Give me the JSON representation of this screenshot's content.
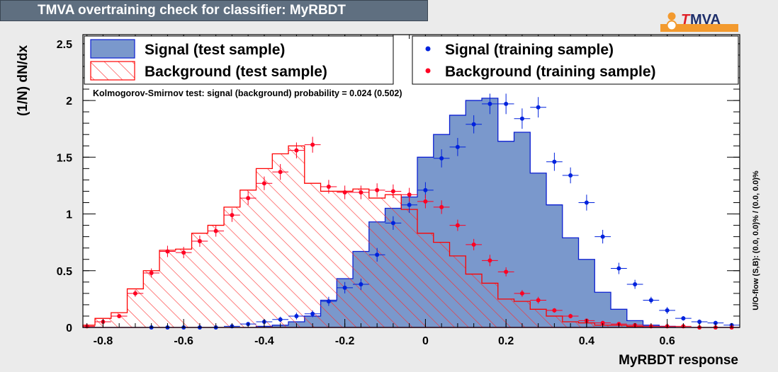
{
  "title": "TMVA overtraining check for classifier: MyRBDT",
  "logo": {
    "text_t": "T",
    "text_mva": "MVA"
  },
  "colors": {
    "signal_fill": "#7a98cc",
    "signal_line": "#0b1fd2",
    "background_line": "#ff0000",
    "signal_points": "#0022dd",
    "background_points": "#ff0022"
  },
  "chart_data": {
    "type": "histogram",
    "xlabel": "MyRBDT response",
    "ylabel": "(1/N) dN/dx",
    "xlim": [
      -0.85,
      0.78
    ],
    "ylim": [
      0,
      2.58
    ],
    "x_ticks": [
      "-0.8",
      "-0.6",
      "-0.4",
      "-0.2",
      "0",
      "0.2",
      "0.4",
      "0.6"
    ],
    "y_ticks": [
      "0",
      "0.5",
      "1",
      "1.5",
      "2",
      "2.5"
    ],
    "bin_edges": [
      -0.86,
      -0.82,
      -0.78,
      -0.74,
      -0.7,
      -0.66,
      -0.62,
      -0.58,
      -0.54,
      -0.5,
      -0.46,
      -0.42,
      -0.38,
      -0.34,
      -0.3,
      -0.26,
      -0.22,
      -0.18,
      -0.14,
      -0.1,
      -0.06,
      -0.02,
      0.02,
      0.06,
      0.1,
      0.14,
      0.18,
      0.22,
      0.26,
      0.3,
      0.34,
      0.38,
      0.42,
      0.46,
      0.5,
      0.54,
      0.58,
      0.62,
      0.66,
      0.7,
      0.74,
      0.78
    ],
    "series": [
      {
        "name": "Signal (test sample)",
        "style": "filled-histogram",
        "values": [
          0,
          0,
          0,
          0,
          0,
          0,
          0,
          0,
          0,
          0,
          0,
          0.01,
          0.02,
          0.05,
          0.1,
          0.24,
          0.43,
          0.67,
          0.93,
          1.05,
          1.15,
          1.5,
          1.7,
          1.87,
          2.0,
          2.02,
          1.64,
          1.72,
          1.36,
          1.08,
          0.79,
          0.6,
          0.31,
          0.16,
          0.06,
          0.02,
          0.01,
          0,
          0,
          0,
          0
        ]
      },
      {
        "name": "Background (test sample)",
        "style": "hatched-histogram",
        "values": [
          0.02,
          0.08,
          0.13,
          0.34,
          0.5,
          0.68,
          0.69,
          0.83,
          0.9,
          1.06,
          1.21,
          1.4,
          1.53,
          1.6,
          1.27,
          1.2,
          1.2,
          1.22,
          1.14,
          1.17,
          1.04,
          0.83,
          0.75,
          0.63,
          0.47,
          0.39,
          0.25,
          0.23,
          0.16,
          0.1,
          0.05,
          0.04,
          0.02,
          0.02,
          0.01,
          0,
          0,
          0,
          0,
          0,
          0
        ]
      },
      {
        "name": "Signal (training sample)",
        "style": "points",
        "x": [
          -0.68,
          -0.64,
          -0.6,
          -0.56,
          -0.52,
          -0.48,
          -0.44,
          -0.4,
          -0.36,
          -0.32,
          -0.28,
          -0.24,
          -0.2,
          -0.16,
          -0.12,
          -0.08,
          -0.04,
          0.0,
          0.04,
          0.08,
          0.12,
          0.16,
          0.2,
          0.24,
          0.28,
          0.32,
          0.36,
          0.4,
          0.44,
          0.48,
          0.52,
          0.56,
          0.6,
          0.64,
          0.68,
          0.72,
          0.76
        ],
        "y": [
          0,
          0,
          0,
          0,
          0,
          0.01,
          0.03,
          0.05,
          0.07,
          0.1,
          0.12,
          0.23,
          0.35,
          0.38,
          0.64,
          0.92,
          1.08,
          1.21,
          1.49,
          1.59,
          1.79,
          1.97,
          1.97,
          1.84,
          1.94,
          1.46,
          1.34,
          1.1,
          0.8,
          0.52,
          0.38,
          0.24,
          0.15,
          0.08,
          0.05,
          0.04,
          0.02
        ],
        "y_err": [
          0.005,
          0.005,
          0.005,
          0.005,
          0.005,
          0.01,
          0.015,
          0.02,
          0.025,
          0.03,
          0.03,
          0.04,
          0.05,
          0.05,
          0.06,
          0.06,
          0.07,
          0.07,
          0.08,
          0.08,
          0.08,
          0.09,
          0.09,
          0.09,
          0.09,
          0.08,
          0.07,
          0.07,
          0.06,
          0.05,
          0.04,
          0.03,
          0.03,
          0.02,
          0.02,
          0.015,
          0.01
        ]
      },
      {
        "name": "Background (training sample)",
        "style": "points",
        "x": [
          -0.84,
          -0.8,
          -0.76,
          -0.72,
          -0.68,
          -0.64,
          -0.6,
          -0.56,
          -0.52,
          -0.48,
          -0.44,
          -0.4,
          -0.36,
          -0.32,
          -0.28,
          -0.24,
          -0.2,
          -0.16,
          -0.12,
          -0.08,
          -0.04,
          0.0,
          0.04,
          0.08,
          0.12,
          0.16,
          0.2,
          0.24,
          0.28,
          0.32,
          0.36,
          0.4,
          0.44,
          0.48,
          0.52,
          0.56,
          0.6,
          0.64,
          0.68,
          0.72,
          0.76
        ],
        "y": [
          0.01,
          0.05,
          0.1,
          0.3,
          0.48,
          0.67,
          0.66,
          0.76,
          0.85,
          0.99,
          1.14,
          1.27,
          1.37,
          1.56,
          1.61,
          1.24,
          1.19,
          1.19,
          1.21,
          1.2,
          1.17,
          1.11,
          1.06,
          0.9,
          0.73,
          0.59,
          0.49,
          0.3,
          0.24,
          0.15,
          0.1,
          0.06,
          0.04,
          0.03,
          0.02,
          0.01,
          0.01,
          0.01,
          0,
          0,
          0
        ],
        "y_err": [
          0.005,
          0.01,
          0.015,
          0.03,
          0.04,
          0.05,
          0.05,
          0.05,
          0.05,
          0.06,
          0.06,
          0.06,
          0.07,
          0.07,
          0.07,
          0.06,
          0.06,
          0.06,
          0.06,
          0.06,
          0.06,
          0.06,
          0.06,
          0.05,
          0.05,
          0.05,
          0.04,
          0.03,
          0.03,
          0.02,
          0.02,
          0.015,
          0.01,
          0.01,
          0.01,
          0.005,
          0.005,
          0.005,
          0.005,
          0.005,
          0.005
        ]
      }
    ],
    "legend_placement": "top",
    "annotation": "Kolmogorov-Smirnov test: signal (background) probability = 0.024 (0.502)",
    "side_label": "U/O-flow (S,B): (0.0, 0.0)% / (0.0, 0.0)%"
  }
}
